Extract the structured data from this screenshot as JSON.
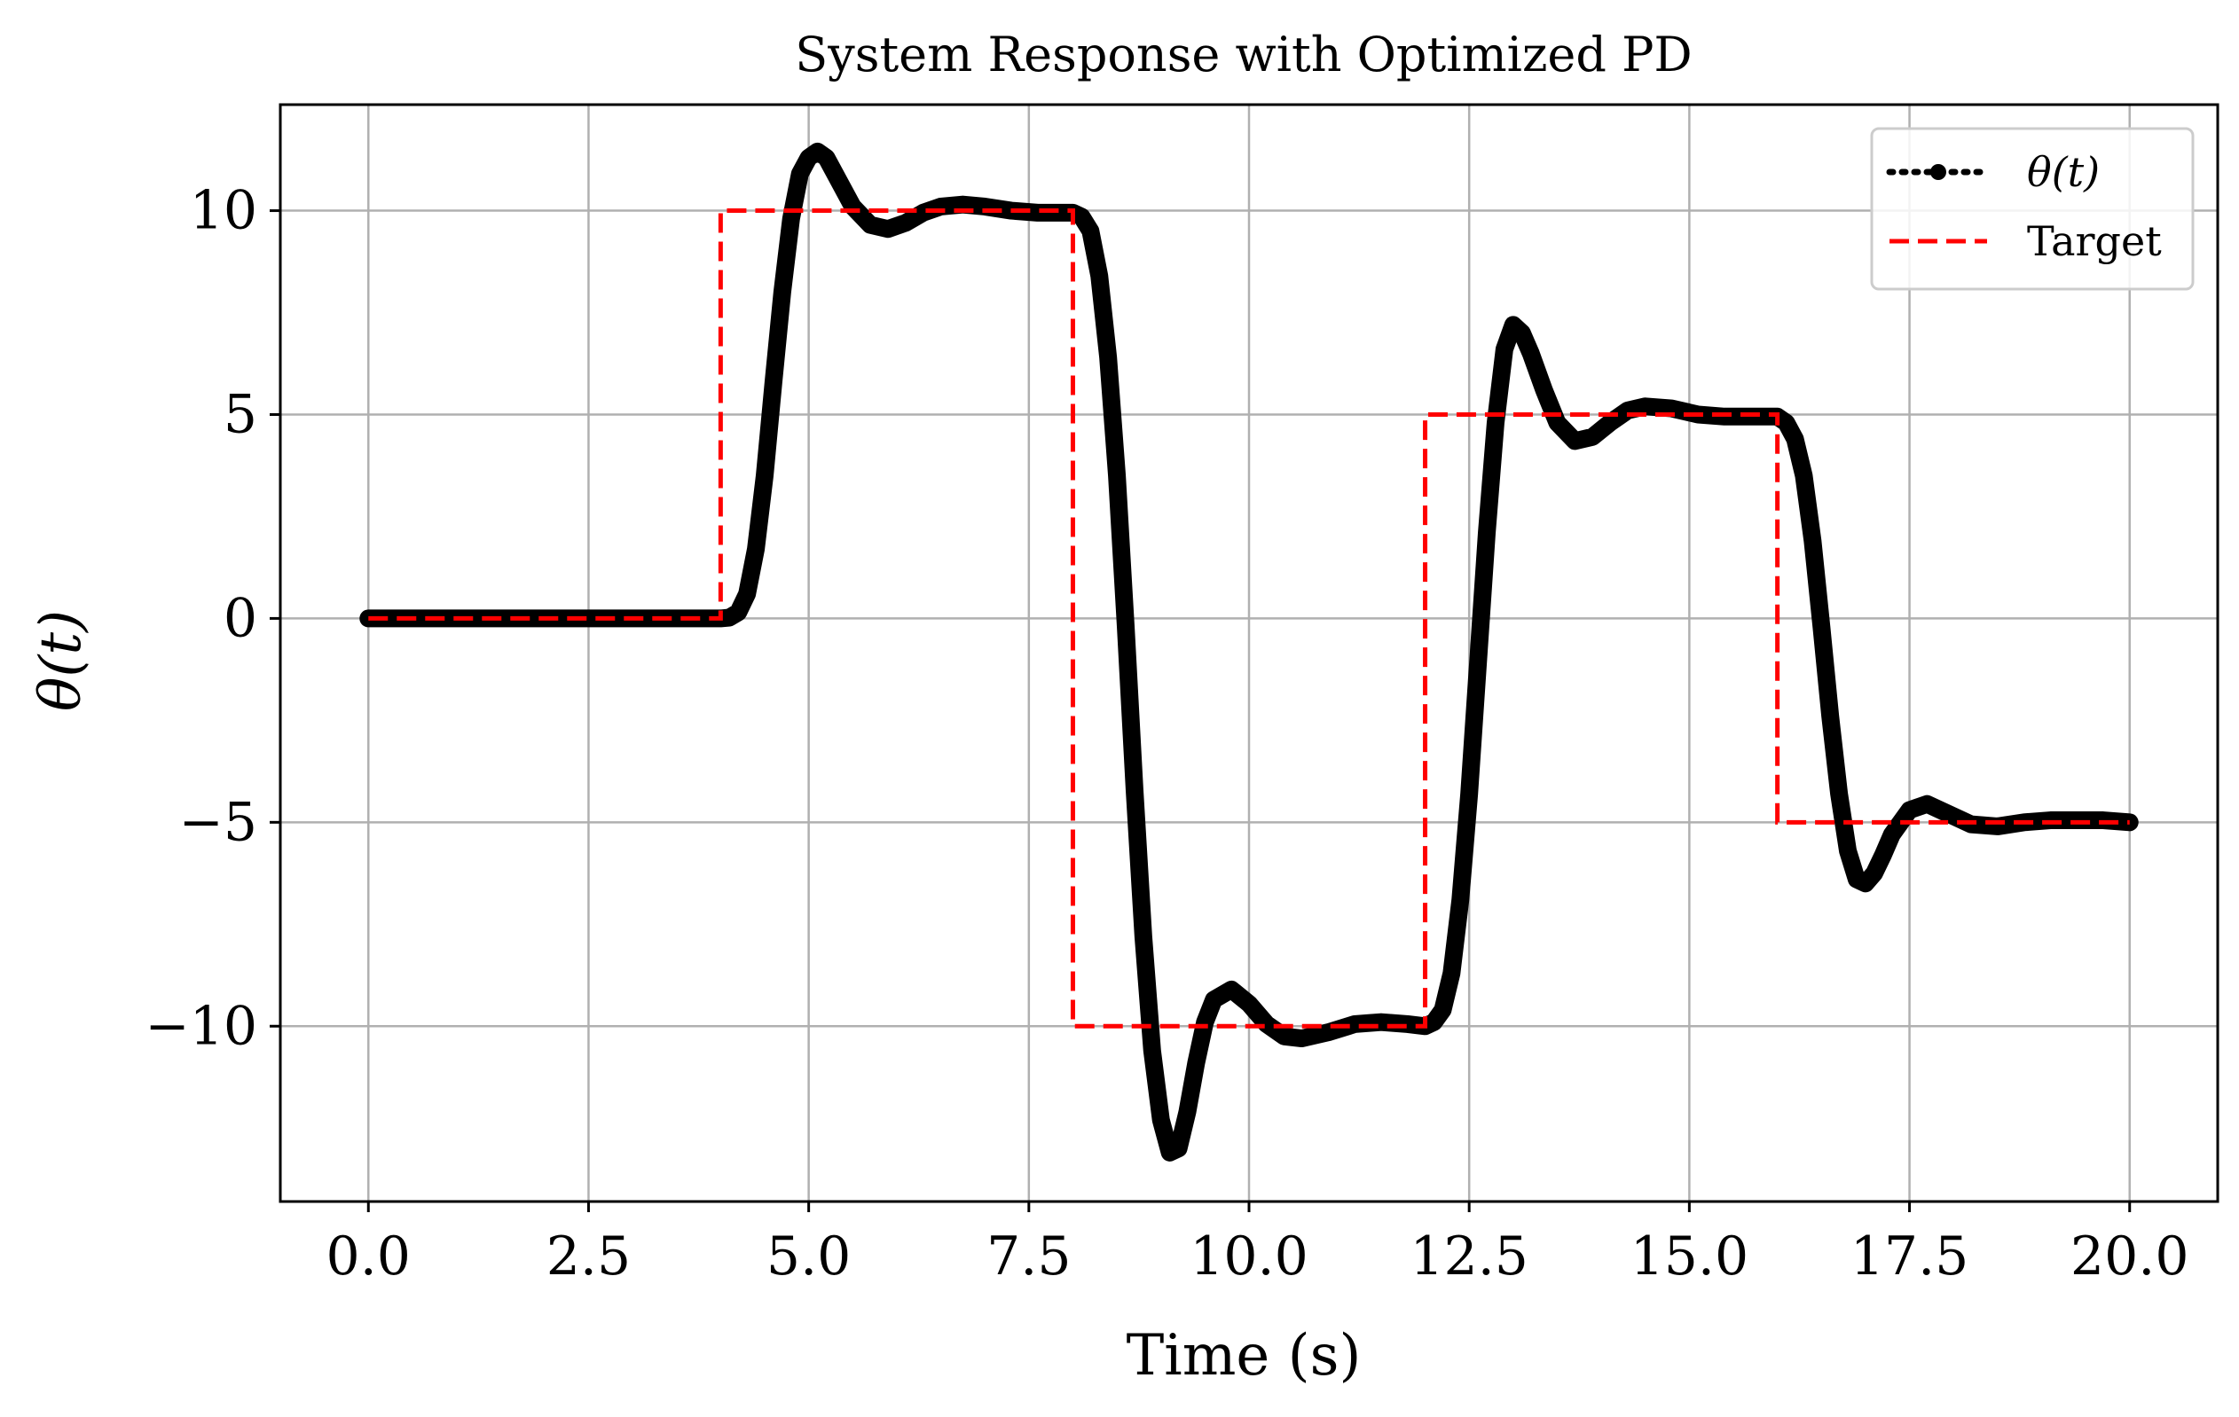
{
  "chart_data": {
    "type": "line",
    "title": "System Response with Optimized PD",
    "xlabel": "Time (s)",
    "ylabel": "θ(t)",
    "xlim": [
      -1.0,
      21.0
    ],
    "ylim": [
      -14.3,
      12.6
    ],
    "grid": true,
    "legend_position": "top-right",
    "x_ticks": [
      0.0,
      2.5,
      5.0,
      7.5,
      10.0,
      12.5,
      15.0,
      17.5,
      20.0
    ],
    "x_tick_labels": [
      "0.0",
      "2.5",
      "5.0",
      "7.5",
      "10.0",
      "12.5",
      "15.0",
      "17.5",
      "20.0"
    ],
    "y_ticks": [
      -10,
      -5,
      0,
      5,
      10
    ],
    "y_tick_labels": [
      "−10",
      "−5",
      "0",
      "5",
      "10"
    ],
    "series": [
      {
        "name": "θ(t)",
        "style": "dotted-with-markers",
        "color": "#000000",
        "x": [
          0,
          1,
          2,
          3,
          4,
          4.1,
          4.2,
          4.3,
          4.4,
          4.5,
          4.6,
          4.7,
          4.8,
          4.9,
          5.0,
          5.1,
          5.2,
          5.35,
          5.5,
          5.7,
          5.9,
          6.1,
          6.3,
          6.5,
          6.75,
          7.0,
          7.3,
          7.6,
          7.9,
          8.0,
          8.1,
          8.2,
          8.3,
          8.4,
          8.5,
          8.6,
          8.7,
          8.8,
          8.9,
          9.0,
          9.1,
          9.2,
          9.3,
          9.4,
          9.5,
          9.6,
          9.8,
          10.0,
          10.2,
          10.4,
          10.6,
          10.9,
          11.2,
          11.5,
          11.8,
          12.0,
          12.1,
          12.2,
          12.3,
          12.4,
          12.5,
          12.6,
          12.7,
          12.8,
          12.9,
          13.0,
          13.1,
          13.2,
          13.35,
          13.5,
          13.7,
          13.9,
          14.1,
          14.3,
          14.5,
          14.8,
          15.1,
          15.4,
          15.7,
          16.0,
          16.1,
          16.2,
          16.3,
          16.4,
          16.5,
          16.6,
          16.7,
          16.8,
          16.9,
          17.0,
          17.1,
          17.2,
          17.3,
          17.5,
          17.7,
          17.95,
          18.2,
          18.5,
          18.8,
          19.1,
          19.4,
          19.7,
          20.0
        ],
        "y": [
          0,
          0,
          0,
          0,
          0,
          0.02,
          0.15,
          0.6,
          1.7,
          3.5,
          5.8,
          8.0,
          9.8,
          10.9,
          11.3,
          11.45,
          11.3,
          10.7,
          10.1,
          9.65,
          9.55,
          9.7,
          9.95,
          10.1,
          10.15,
          10.1,
          10.0,
          9.95,
          9.95,
          9.95,
          9.85,
          9.5,
          8.4,
          6.4,
          3.5,
          -0.2,
          -4.2,
          -7.8,
          -10.6,
          -12.3,
          -13.1,
          -13.0,
          -12.1,
          -10.9,
          -9.9,
          -9.35,
          -9.1,
          -9.45,
          -9.95,
          -10.25,
          -10.3,
          -10.15,
          -9.95,
          -9.9,
          -9.95,
          -10.0,
          -9.9,
          -9.6,
          -8.7,
          -6.9,
          -4.3,
          -1.1,
          2.1,
          4.8,
          6.6,
          7.2,
          7.0,
          6.5,
          5.6,
          4.8,
          4.35,
          4.45,
          4.8,
          5.1,
          5.2,
          5.15,
          5.0,
          4.95,
          4.95,
          4.95,
          4.8,
          4.4,
          3.5,
          1.9,
          -0.2,
          -2.4,
          -4.3,
          -5.7,
          -6.4,
          -6.5,
          -6.25,
          -5.8,
          -5.3,
          -4.7,
          -4.55,
          -4.8,
          -5.05,
          -5.1,
          -5.0,
          -4.95,
          -4.95,
          -4.95,
          -5.0
        ]
      },
      {
        "name": "Target",
        "style": "dashed",
        "color": "#ff0000",
        "x": [
          0,
          4,
          4,
          8,
          8,
          12,
          12,
          16,
          16,
          20
        ],
        "y": [
          0,
          0,
          10,
          10,
          -10,
          -10,
          5,
          5,
          -5,
          -5
        ]
      }
    ]
  }
}
